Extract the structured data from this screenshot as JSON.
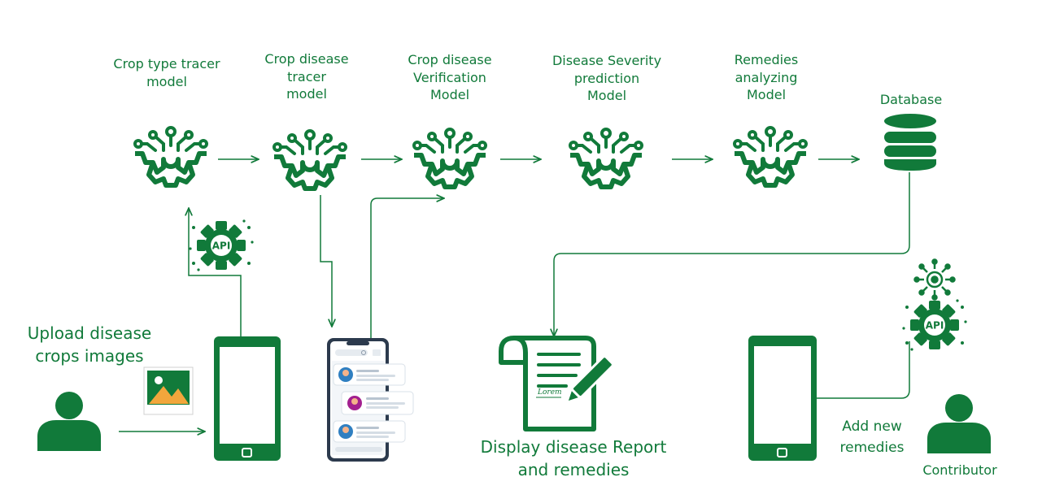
{
  "colors": {
    "primary": "#117a3a",
    "accent_purple": "#a3208f",
    "accent_blue": "#2f7fc1",
    "skin": "#f4b38a"
  },
  "models": [
    {
      "label": "Crop type tracer\nmodel",
      "icon": "ai-gear-icon"
    },
    {
      "label": "Crop disease\ntracer\nmodel",
      "icon": "ai-gear-icon"
    },
    {
      "label": "Crop disease\nVerification\nModel",
      "icon": "ai-gear-icon"
    },
    {
      "label": "Disease Severity\nprediction\nModel",
      "icon": "ai-gear-icon"
    },
    {
      "label": "Remedies\nanalyzing\nModel",
      "icon": "ai-gear-icon"
    }
  ],
  "database": {
    "label": "Database",
    "icon": "database-icon"
  },
  "upload": {
    "label": "Upload disease\ncrops images",
    "icons": [
      "user-icon",
      "image-icon",
      "smartphone-icon"
    ]
  },
  "api_icons": [
    "api-gear-icon",
    "network-gear-icon",
    "api-gear-icon"
  ],
  "report": {
    "label": "Display disease Report\nand remedies",
    "icon": "document-pen-icon",
    "signature": "Lorem"
  },
  "contributor": {
    "label": "Contributor",
    "action_label": "Add new\nremedies",
    "icons": [
      "user-icon",
      "smartphone-icon"
    ]
  },
  "chat_app": {
    "icon": "chat-app-phone-icon"
  }
}
